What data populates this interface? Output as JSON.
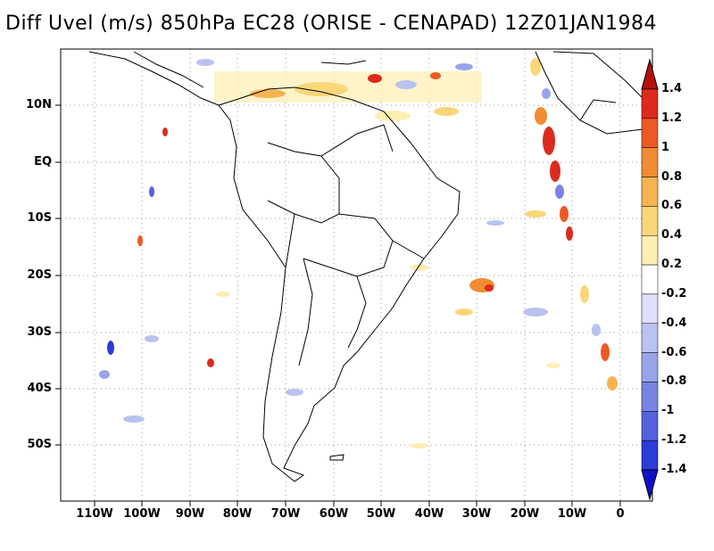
{
  "title": "Diff Uvel (m/s) 850hPa EC28 (ORISE - CENAPAD) 12Z01JAN1984",
  "latitude_labels": [
    "10N",
    "EQ",
    "10S",
    "20S",
    "30S",
    "40S",
    "50S"
  ],
  "longitude_labels": [
    "110W",
    "100W",
    "90W",
    "80W",
    "70W",
    "60W",
    "50W",
    "40W",
    "30W",
    "20W",
    "10W",
    "0"
  ],
  "colorbar": {
    "labels": [
      "1.4",
      "1.2",
      "1",
      "0.8",
      "0.6",
      "0.4",
      "0.2",
      "-0.2",
      "-0.4",
      "-0.6",
      "-0.8",
      "-1",
      "-1.2",
      "-1.4"
    ],
    "colors": [
      "#b40f0f",
      "#dc2b1e",
      "#eb5a24",
      "#f08c32",
      "#f5b450",
      "#fad67a",
      "#fdeeb2",
      "#ffffff",
      "#dce0f8",
      "#bac2f0",
      "#9aa4ea",
      "#7884e4",
      "#5462de",
      "#2c3cd6",
      "#1010c8"
    ]
  },
  "map": {
    "lon_range": [
      -117,
      7
    ],
    "lat_range": [
      -60,
      18
    ],
    "grid": "dotted",
    "continents": "black outline"
  }
}
